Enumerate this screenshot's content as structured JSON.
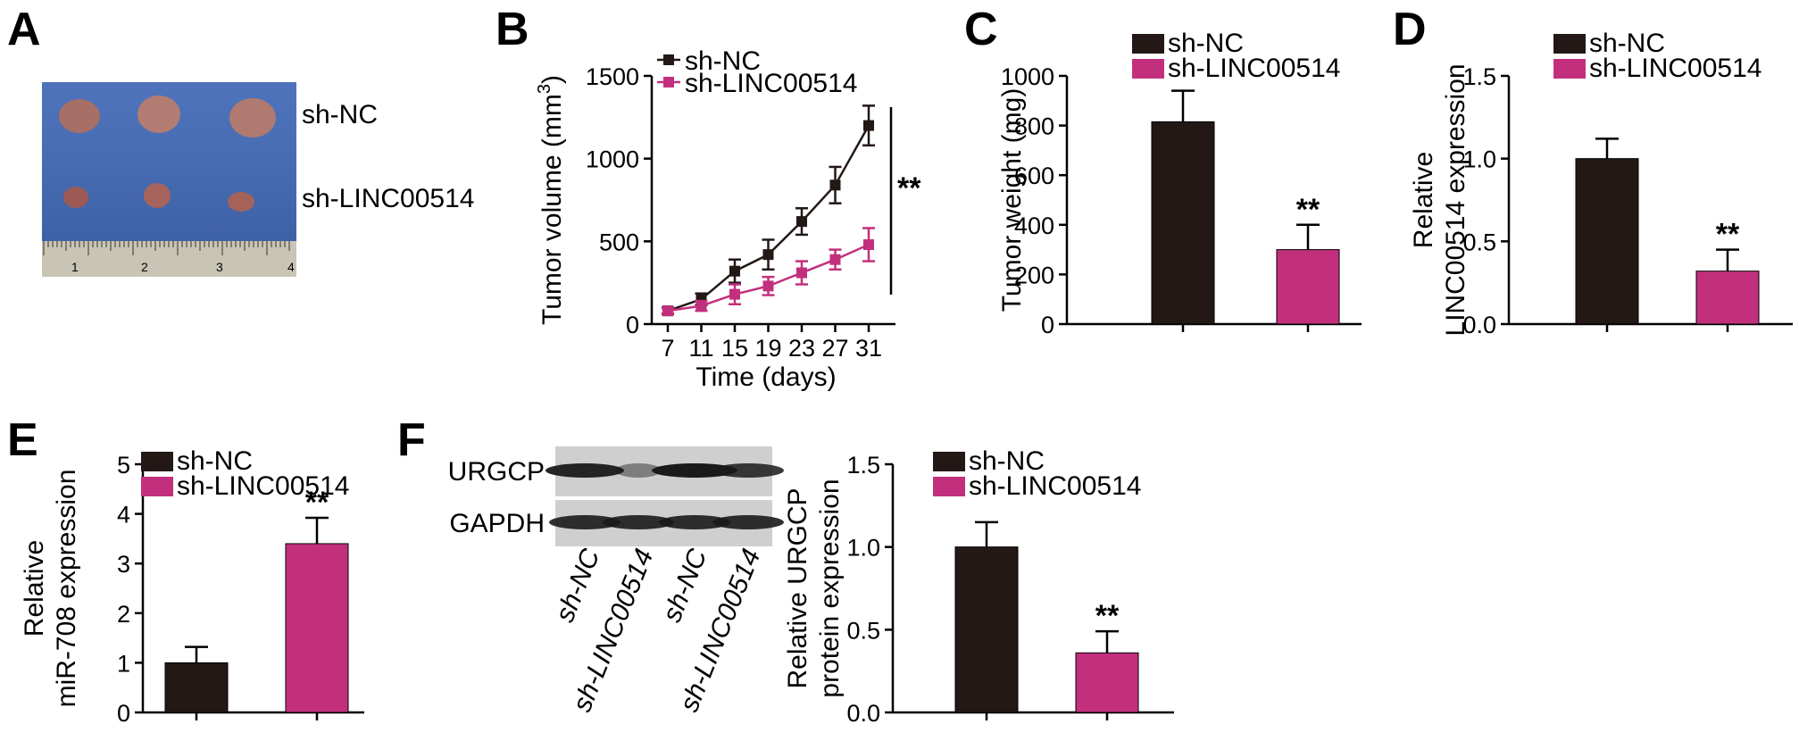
{
  "colors": {
    "sh_nc": "#231816",
    "sh_linc": "#c2307d",
    "photo_bg": "#3f67b5",
    "blot_bg": "#cfcfcf"
  },
  "panels": {
    "A": {
      "letter": "A",
      "photo_rows": [
        "sh-NC",
        "sh-LINC00514"
      ],
      "ruler_numbers": [
        "1",
        "2",
        "3",
        "4"
      ]
    },
    "F_blot": {
      "bands": [
        "URGCP",
        "GAPDH"
      ],
      "lanes": [
        "sh-NC",
        "sh-LINC00514",
        "sh-NC",
        "sh-LINC00514"
      ]
    }
  },
  "chart_data": [
    {
      "panel": "B",
      "type": "line",
      "title": "",
      "xlabel": "Time (days)",
      "ylabel": "Tumor volume (mm³)",
      "x": [
        7,
        11,
        15,
        19,
        23,
        27,
        31
      ],
      "xticks": [
        "7",
        "11",
        "15",
        "19",
        "23",
        "27",
        "31"
      ],
      "ylim": [
        0,
        1500
      ],
      "yticks": [
        "0",
        "500",
        "1000",
        "1500"
      ],
      "series": [
        {
          "name": "sh-NC",
          "values": [
            80,
            150,
            320,
            420,
            620,
            840,
            1200
          ],
          "errors": [
            20,
            35,
            70,
            90,
            80,
            110,
            120
          ]
        },
        {
          "name": "sh-LINC00514",
          "values": [
            80,
            110,
            180,
            230,
            310,
            390,
            480
          ],
          "errors": [
            15,
            30,
            60,
            55,
            70,
            60,
            100
          ]
        }
      ],
      "significance": "**",
      "legend": "top-left"
    },
    {
      "panel": "C",
      "type": "bar",
      "title": "",
      "xlabel": "",
      "ylabel": "Tumor weight (mg)",
      "categories": [
        "sh-NC",
        "sh-LINC00514"
      ],
      "values": [
        815,
        300
      ],
      "errors": [
        125,
        100
      ],
      "ylim": [
        0,
        1000
      ],
      "yticks": [
        "0",
        "200",
        "400",
        "600",
        "800",
        "1000"
      ],
      "significance": "**",
      "legend": "top"
    },
    {
      "panel": "D",
      "type": "bar",
      "title": "",
      "xlabel": "",
      "ylabel_lines": [
        "Relative",
        "LINC00514 expression"
      ],
      "categories": [
        "sh-NC",
        "sh-LINC00514"
      ],
      "values": [
        1.0,
        0.32
      ],
      "errors": [
        0.12,
        0.13
      ],
      "ylim": [
        0,
        1.5
      ],
      "yticks": [
        "0.0",
        "0.5",
        "1.0",
        "1.5"
      ],
      "significance": "**",
      "legend": "top"
    },
    {
      "panel": "E",
      "type": "bar",
      "title": "",
      "xlabel": "",
      "ylabel_lines": [
        "Relative",
        "miR-708 expression"
      ],
      "categories": [
        "sh-NC",
        "sh-LINC00514"
      ],
      "values": [
        1.0,
        3.4
      ],
      "errors": [
        0.32,
        0.52
      ],
      "ylim": [
        0,
        5
      ],
      "yticks": [
        "0",
        "1",
        "2",
        "3",
        "4",
        "5"
      ],
      "significance": "**",
      "legend": "top-left"
    },
    {
      "panel": "F",
      "type": "bar",
      "title": "",
      "xlabel": "",
      "ylabel_lines": [
        "Relative URGCP",
        "protein expression"
      ],
      "categories": [
        "sh-NC",
        "sh-LINC00514"
      ],
      "values": [
        1.0,
        0.36
      ],
      "errors": [
        0.15,
        0.13
      ],
      "ylim": [
        0,
        1.5
      ],
      "yticks": [
        "0.0",
        "0.5",
        "1.0",
        "1.5"
      ],
      "significance": "**",
      "legend": "top"
    }
  ]
}
